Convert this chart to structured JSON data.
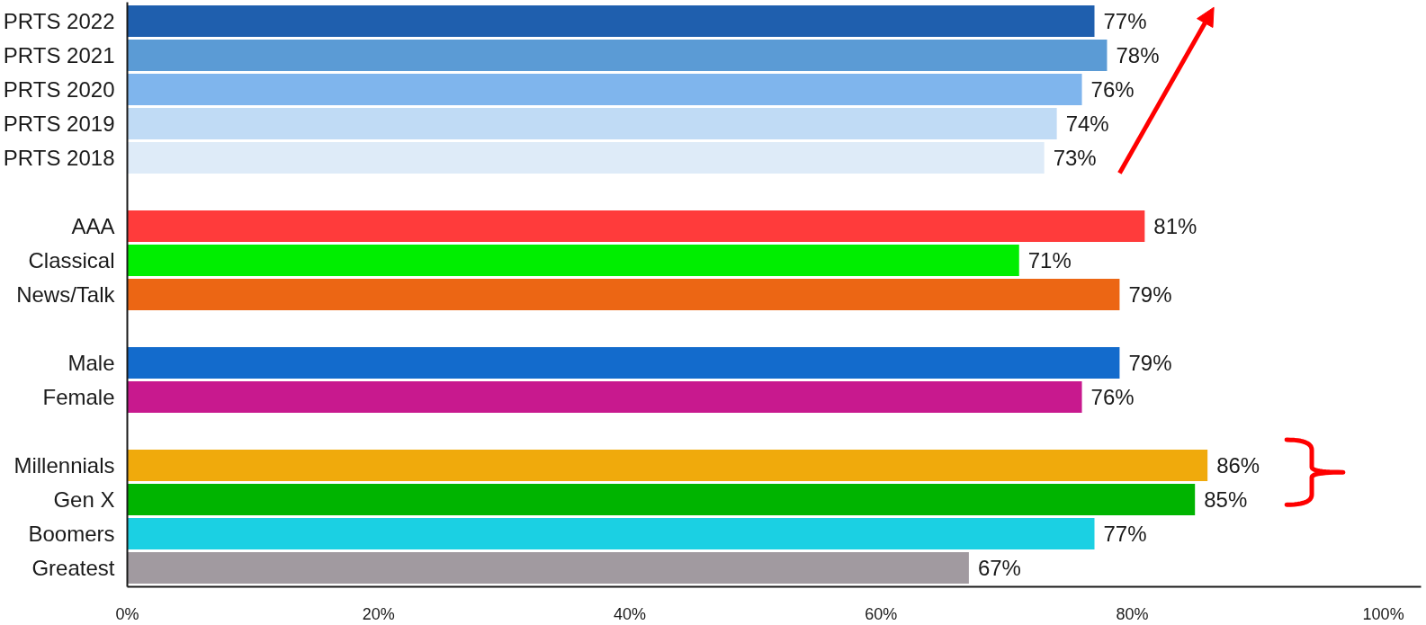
{
  "chart_data": {
    "type": "bar",
    "orientation": "horizontal",
    "categories": [
      "PRTS 2022",
      "PRTS 2021",
      "PRTS 2020",
      "PRTS 2019",
      "PRTS 2018",
      null,
      "AAA",
      "Classical",
      "News/Talk",
      null,
      "Male",
      "Female",
      null,
      "Millennials",
      "Gen X",
      "Boomers",
      "Greatest"
    ],
    "values": [
      77,
      78,
      76,
      74,
      73,
      null,
      81,
      71,
      79,
      null,
      79,
      76,
      null,
      86,
      85,
      77,
      67
    ],
    "colors": [
      "#1f5fae",
      "#5b9bd5",
      "#7fb5ed",
      "#c0dbf5",
      "#deebf8",
      null,
      "#ff3b3b",
      "#00ee00",
      "#ec6614",
      null,
      "#136bcc",
      "#c8198e",
      null,
      "#f0aa0c",
      "#00b400",
      "#1bd0e3",
      "#a19aa0"
    ],
    "value_labels": [
      "77%",
      "78%",
      "76%",
      "74%",
      "73%",
      null,
      "81%",
      "71%",
      "79%",
      null,
      "79%",
      "76%",
      null,
      "86%",
      "85%",
      "77%",
      "67%"
    ],
    "xlim": [
      0,
      103
    ],
    "xticks": [
      {
        "value": 0,
        "label": "0%"
      },
      {
        "value": 20,
        "label": "20%"
      },
      {
        "value": 40,
        "label": "40%"
      },
      {
        "value": 60,
        "label": "60%"
      },
      {
        "value": 80,
        "label": "80%"
      },
      {
        "value": 100,
        "label": "100%"
      }
    ]
  }
}
